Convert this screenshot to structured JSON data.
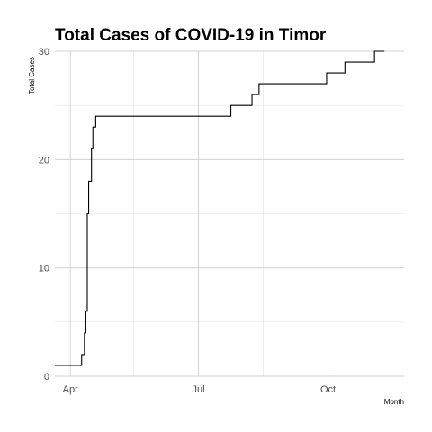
{
  "chart_data": {
    "type": "line",
    "title": "Total Cases of COVID-19 in Timor",
    "xlabel": "Month",
    "ylabel": "Total Cases",
    "xlim": [
      "2020-03-21",
      "2020-11-24"
    ],
    "ylim": [
      0,
      30
    ],
    "x_ticks": [
      {
        "date": "2020-04-01",
        "label": "Apr"
      },
      {
        "date": "2020-07-01",
        "label": "Jul"
      },
      {
        "date": "2020-10-01",
        "label": "Oct"
      }
    ],
    "y_ticks": [
      0,
      10,
      20,
      30
    ],
    "grid": true,
    "legend": "none",
    "series": [
      {
        "color": "#000000",
        "points": [
          {
            "x": "2020-03-21",
            "y": 1
          },
          {
            "x": "2020-04-09",
            "y": 2
          },
          {
            "x": "2020-04-11",
            "y": 4
          },
          {
            "x": "2020-04-12",
            "y": 6
          },
          {
            "x": "2020-04-13",
            "y": 15
          },
          {
            "x": "2020-04-14",
            "y": 18
          },
          {
            "x": "2020-04-16",
            "y": 21
          },
          {
            "x": "2020-04-17",
            "y": 23
          },
          {
            "x": "2020-04-19",
            "y": 24
          },
          {
            "x": "2020-07-24",
            "y": 25
          },
          {
            "x": "2020-08-08",
            "y": 26
          },
          {
            "x": "2020-08-13",
            "y": 27
          },
          {
            "x": "2020-09-30",
            "y": 28
          },
          {
            "x": "2020-10-13",
            "y": 29
          },
          {
            "x": "2020-11-03",
            "y": 30
          },
          {
            "x": "2020-11-10",
            "y": 30
          }
        ]
      }
    ]
  }
}
